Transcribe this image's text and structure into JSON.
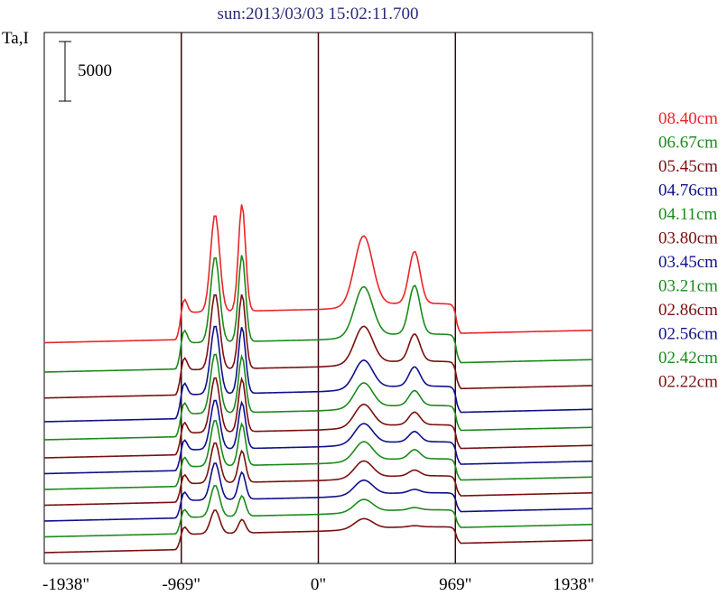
{
  "chart_data": {
    "type": "line",
    "title": "sun:2013/03/03 15:02:11.700",
    "ylabel": "Ta,I",
    "scale_bar_label": "5000",
    "scale_bar_value": 5000,
    "x_ticks": [
      {
        "value": -1938,
        "label": "-1938\""
      },
      {
        "value": -969,
        "label": "-969\""
      },
      {
        "value": 0,
        "label": "0\""
      },
      {
        "value": 969,
        "label": "969\""
      },
      {
        "value": 1938,
        "label": "1938\""
      }
    ],
    "xlim": [
      -1938,
      1938
    ],
    "vertical_lines": [
      -969,
      0,
      969
    ],
    "grid": false,
    "legend_position": "right",
    "series": [
      {
        "label": "08.40cm",
        "color": "#e8262a",
        "offset": 18600,
        "amplitude": 1.0,
        "peak1": 8650,
        "peak2": 9500,
        "peak3": 6200,
        "peak4": 4600
      },
      {
        "label": "06.67cm",
        "color": "#1c8a1c",
        "offset": 16000,
        "amplitude": 0.96,
        "peak1": 7600,
        "peak2": 7700,
        "peak3": 4400,
        "peak4": 4300
      },
      {
        "label": "05.45cm",
        "color": "#7a1010",
        "offset": 13700,
        "amplitude": 0.92,
        "peak1": 6700,
        "peak2": 6600,
        "peak3": 3300,
        "peak4": 2400
      },
      {
        "label": "04.76cm",
        "color": "#10108a",
        "offset": 11600,
        "amplitude": 0.88,
        "peak1": 6100,
        "peak2": 5900,
        "peak3": 2500,
        "peak4": 1700
      },
      {
        "label": "04.11cm",
        "color": "#1c8a1c",
        "offset": 10000,
        "amplitude": 0.84,
        "peak1": 5300,
        "peak2": 5000,
        "peak3": 2200,
        "peak4": 1300
      },
      {
        "label": "03.80cm",
        "color": "#7a1010",
        "offset": 8400,
        "amplitude": 0.8,
        "peak1": 4900,
        "peak2": 4700,
        "peak3": 2000,
        "peak4": 1100
      },
      {
        "label": "03.45cm",
        "color": "#10108a",
        "offset": 7000,
        "amplitude": 0.76,
        "peak1": 4400,
        "peak2": 4100,
        "peak3": 1800,
        "peak4": 900
      },
      {
        "label": "03.21cm",
        "color": "#1c8a1c",
        "offset": 5600,
        "amplitude": 0.72,
        "peak1": 4100,
        "peak2": 3700,
        "peak3": 1700,
        "peak4": 800
      },
      {
        "label": "02.86cm",
        "color": "#7a1010",
        "offset": 4200,
        "amplitude": 0.68,
        "peak1": 3600,
        "peak2": 2800,
        "peak3": 1500,
        "peak4": 500
      },
      {
        "label": "02.56cm",
        "color": "#10108a",
        "offset": 2800,
        "amplitude": 0.64,
        "peak1": 3300,
        "peak2": 2400,
        "peak3": 1300,
        "peak4": 300
      },
      {
        "label": "02.42cm",
        "color": "#1c8a1c",
        "offset": 1400,
        "amplitude": 0.6,
        "peak1": 2800,
        "peak2": 1800,
        "peak3": 1100,
        "peak4": 200
      },
      {
        "label": "02.22cm",
        "color": "#7a1010",
        "offset": 0,
        "amplitude": 0.56,
        "peak1": 2100,
        "peak2": 1200,
        "peak3": 900,
        "peak4": 100
      }
    ]
  }
}
